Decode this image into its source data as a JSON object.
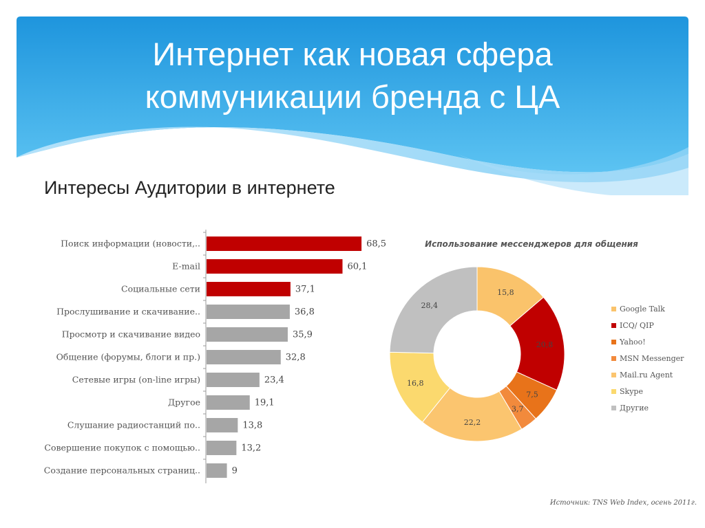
{
  "slide": {
    "title_line1": "Интернет как новая сфера",
    "title_line2": "коммуникации бренда с ЦА",
    "subtitle": "Интересы Аудитории в интернете",
    "source": "Источник: TNS Web Index, осень 2011г."
  },
  "colors": {
    "header_blue": "#2aa7e6",
    "header_light": "#8fd2f7",
    "bar_highlight": "#c00000",
    "bar_default": "#a6a6a6"
  },
  "chart_data": [
    {
      "type": "bar",
      "orientation": "horizontal",
      "categories": [
        "Поиск информации (новости,..",
        "E-mail",
        "Социальные сети",
        "Прослушивание и скачивание..",
        "Просмотр и скачивание видео",
        "Общение (форумы, блоги и пр.)",
        "Сетевые игры (on-line игры)",
        "Другое",
        "Слушание радиостанций по..",
        "Совершение покупок с помощью..",
        "Создание персональных страниц.."
      ],
      "values": [
        68.5,
        60.1,
        37.1,
        36.8,
        35.9,
        32.8,
        23.4,
        19.1,
        13.8,
        13.2,
        9
      ],
      "value_labels": [
        "68,5",
        "60,1",
        "37,1",
        "36,8",
        "35,9",
        "32,8",
        "23,4",
        "19,1",
        "13,8",
        "13,2",
        "9"
      ],
      "bar_colors": [
        "#c00000",
        "#c00000",
        "#c00000",
        "#a6a6a6",
        "#a6a6a6",
        "#a6a6a6",
        "#a6a6a6",
        "#a6a6a6",
        "#a6a6a6",
        "#a6a6a6",
        "#a6a6a6"
      ],
      "xlim": [
        0,
        70
      ],
      "grid": false
    },
    {
      "type": "pie",
      "variant": "donut",
      "title": "Использование мессенджеров для общения",
      "categories": [
        "Google Talk",
        "ICQ/ QIP",
        "Yahoo!",
        "MSN Messenger",
        "Mail.ru Agent",
        "Skype",
        "Другие"
      ],
      "values": [
        15.8,
        20.8,
        7.5,
        3.7,
        22.2,
        16.8,
        28.4
      ],
      "value_labels": [
        "15,8",
        "20,8",
        "7,5",
        "3,7",
        "22,2",
        "16,8",
        "28,4"
      ],
      "colors": [
        "#fac36b",
        "#c00000",
        "#e8731a",
        "#f28a3c",
        "#fbc56f",
        "#fbd96e",
        "#c0c0c0"
      ],
      "legend_position": "right"
    }
  ]
}
